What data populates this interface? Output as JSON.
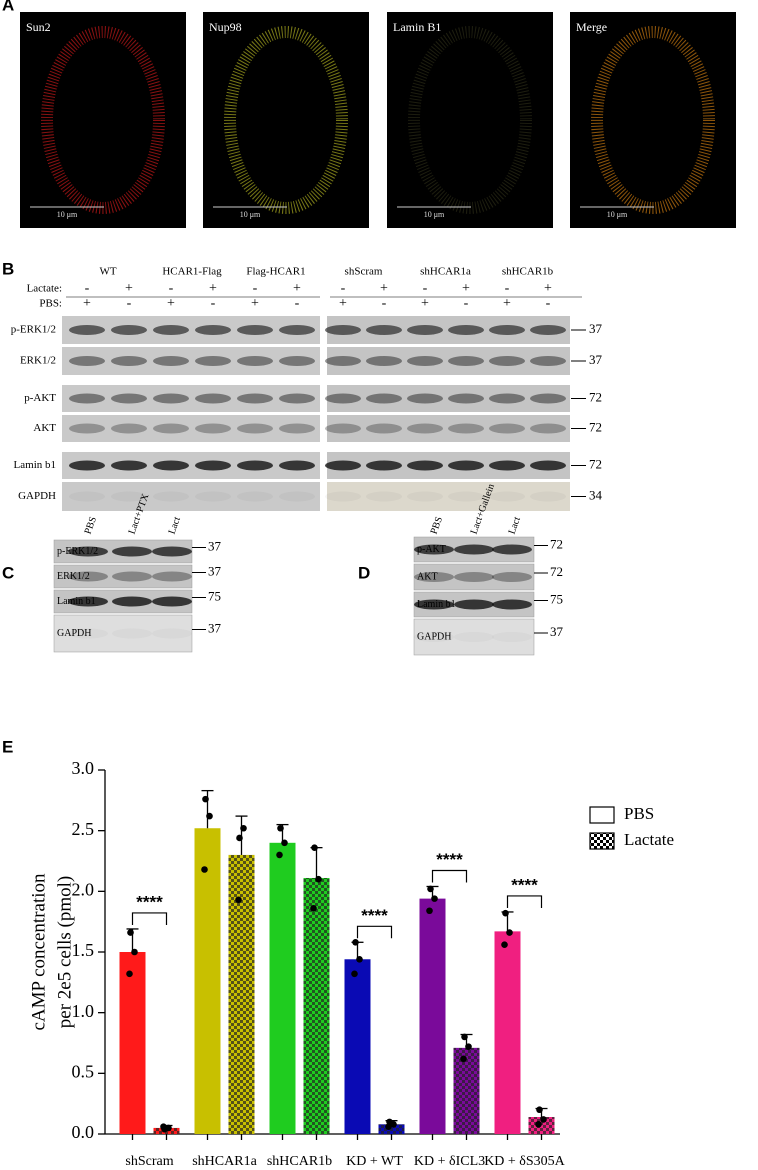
{
  "figure": {
    "A": {
      "letter": "A",
      "images": [
        {
          "label": "Sun2",
          "scale_bar": "10 μm"
        },
        {
          "label": "Nup98",
          "scale_bar": "10 μm"
        },
        {
          "label": "Lamin B1",
          "scale_bar": "10 μm"
        },
        {
          "label": "Merge",
          "scale_bar": "10 μm"
        }
      ]
    },
    "B": {
      "letter": "B",
      "groups": [
        "WT",
        "HCAR1-Flag",
        "Flag-HCAR1",
        "shScram",
        "shHCAR1a",
        "shHCAR1b"
      ],
      "treatment_labels": [
        "Lactate:",
        "PBS:"
      ],
      "lactate": [
        "-",
        "+",
        "-",
        "+",
        "-",
        "+",
        "-",
        "+",
        "-",
        "+",
        "-",
        "+"
      ],
      "pbs": [
        "+",
        "-",
        "+",
        "-",
        "+",
        "-",
        "+",
        "-",
        "+",
        "-",
        "+",
        "-"
      ],
      "rows": [
        "p-ERK1/2",
        "ERK1/2",
        "p-AKT",
        "AKT",
        "Lamin b1",
        "GAPDH"
      ],
      "markers": [
        "37",
        "37",
        "72",
        "72",
        "72",
        "34"
      ]
    },
    "C": {
      "letter": "C",
      "lanes": [
        "PBS",
        "Lact+PTX",
        "Lact"
      ],
      "rows": [
        "p-ERK1/2",
        "ERK1/2",
        "Lamin b1",
        "GAPDH"
      ],
      "markers": [
        "37",
        "37",
        "75",
        "37"
      ]
    },
    "D": {
      "letter": "D",
      "lanes": [
        "PBS",
        "Lact+Gallein",
        "Lact"
      ],
      "rows": [
        "p-AKT",
        "AKT",
        "Lamin b1",
        "GAPDH"
      ],
      "markers": [
        "72",
        "72",
        "75",
        "37"
      ]
    }
  },
  "chart_data": {
    "type": "bar",
    "panel_letter": "E",
    "ylabel": [
      "cAMP concentration",
      "per 2e5 cells (pmol)"
    ],
    "categories": [
      "shScram",
      "shHCAR1a",
      "shHCAR1b",
      "KD + WT",
      "KD + δICL3",
      "KD + δS305A"
    ],
    "category_colors": [
      "#ff1a1a",
      "#c8c000",
      "#1fcc1f",
      "#0a0ab4",
      "#7a0a9a",
      "#f01f80"
    ],
    "series": [
      {
        "name": "PBS",
        "pattern": "solid",
        "values": [
          1.5,
          2.52,
          2.4,
          1.44,
          1.94,
          1.67
        ],
        "errors": [
          0.19,
          0.31,
          0.15,
          0.14,
          0.1,
          0.16
        ],
        "points": [
          [
            1.66,
            1.5,
            1.32
          ],
          [
            2.76,
            2.62,
            2.18
          ],
          [
            2.52,
            2.4,
            2.3
          ],
          [
            1.58,
            1.44,
            1.32
          ],
          [
            2.02,
            1.94,
            1.84
          ],
          [
            1.82,
            1.66,
            1.56
          ]
        ]
      },
      {
        "name": "Lactate",
        "pattern": "checkered",
        "values": [
          0.05,
          2.3,
          2.11,
          0.08,
          0.71,
          0.14
        ],
        "errors": [
          0.02,
          0.32,
          0.25,
          0.03,
          0.11,
          0.07
        ],
        "points": [
          [
            0.04,
            0.05,
            0.06
          ],
          [
            2.44,
            2.52,
            1.93
          ],
          [
            2.36,
            2.1,
            1.86
          ],
          [
            0.1,
            0.08,
            0.06
          ],
          [
            0.8,
            0.72,
            0.62
          ],
          [
            0.2,
            0.12,
            0.08
          ]
        ]
      }
    ],
    "annotations": [
      {
        "text": "****",
        "category": 0
      },
      {
        "text": "****",
        "category": 3
      },
      {
        "text": "****",
        "category": 4
      },
      {
        "text": "****",
        "category": 5
      }
    ],
    "ylim": [
      0,
      3
    ],
    "yticks": [
      {
        "value": 0,
        "label": "0.0"
      },
      0.5,
      {
        "value": 1,
        "label": "1.0"
      },
      1.5,
      {
        "value": 2,
        "label": "2.0"
      },
      2.5,
      {
        "value": 3,
        "label": "3.0"
      }
    ],
    "legend": "top-right"
  }
}
